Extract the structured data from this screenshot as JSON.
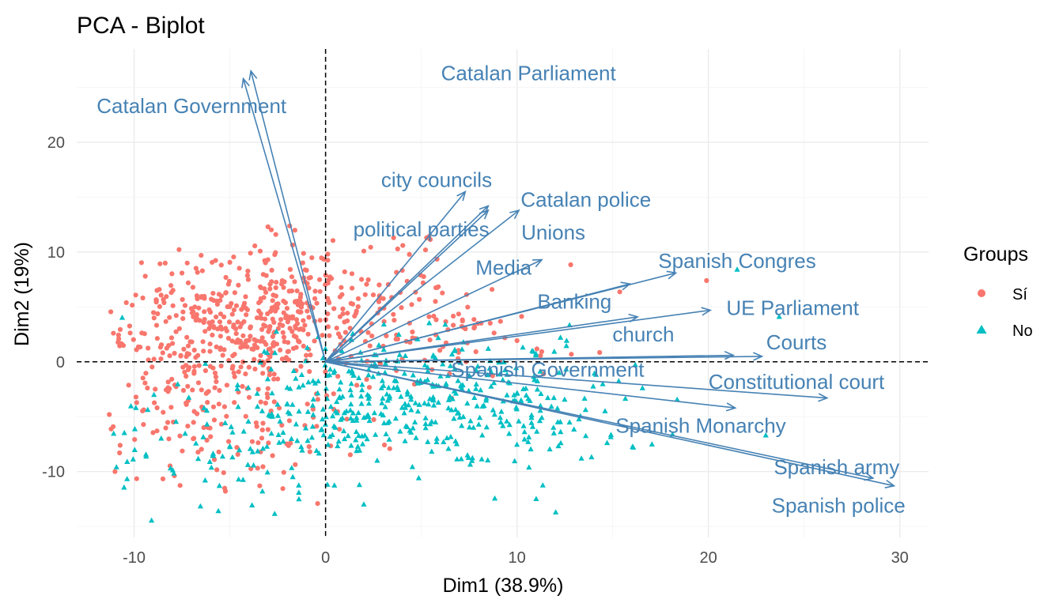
{
  "chart_data": {
    "type": "scatter",
    "title": "PCA - Biplot",
    "xlabel": "Dim1 (38.9%)",
    "ylabel": "Dim2 (19%)",
    "xlim": [
      -13,
      31.5
    ],
    "ylim": [
      -16,
      28.5
    ],
    "x_ticks": [
      -10,
      0,
      10,
      20,
      30
    ],
    "y_ticks": [
      -10,
      0,
      10,
      20
    ],
    "x_tick_labels": [
      "-10",
      "0",
      "10",
      "20",
      "30"
    ],
    "y_tick_labels": [
      "-10",
      "0",
      "10",
      "20"
    ],
    "grid": true,
    "reference_lines": {
      "x": 0,
      "y": 0,
      "style": "dashed"
    },
    "colors": {
      "Sí": "#F8766D",
      "No": "#00BFC4",
      "arrows": "#4682B4"
    },
    "legend": {
      "title": "Groups",
      "placement": "right",
      "entries": [
        {
          "label": "Sí",
          "color": "#F8766D",
          "shape": "circle"
        },
        {
          "label": "No",
          "color": "#00BFC4",
          "shape": "triangle"
        }
      ]
    },
    "variables": [
      {
        "name": "Catalan Parliament",
        "x": -3.9,
        "y": 26.5,
        "lx": 10.6,
        "ly": 26.3
      },
      {
        "name": "Catalan Government",
        "x": -4.3,
        "y": 25.8,
        "lx": -7.0,
        "ly": 23.3
      },
      {
        "name": "city councils",
        "x": 7.3,
        "y": 15.5,
        "lx": 5.8,
        "ly": 16.6
      },
      {
        "name": "Catalan police",
        "x": 8.5,
        "y": 14.2,
        "lx": 13.6,
        "ly": 14.8
      },
      {
        "name": "Unions",
        "x": 10.1,
        "y": 13.8,
        "lx": 11.9,
        "ly": 11.8
      },
      {
        "name": "political parties",
        "x": 8.5,
        "y": 13.8,
        "lx": 5.0,
        "ly": 12.1
      },
      {
        "name": "Media",
        "x": 11.3,
        "y": 9.3,
        "lx": 9.3,
        "ly": 8.6
      },
      {
        "name": "Spanish Congres",
        "x": 18.3,
        "y": 8.1,
        "lx": 21.5,
        "ly": 9.2
      },
      {
        "name": "Banking",
        "x": 15.9,
        "y": 7.1,
        "lx": 13.0,
        "ly": 5.5
      },
      {
        "name": "UE Parliament",
        "x": 20.1,
        "y": 4.7,
        "lx": 24.4,
        "ly": 4.9
      },
      {
        "name": "church",
        "x": 16.3,
        "y": 4.1,
        "lx": 16.6,
        "ly": 2.5
      },
      {
        "name": "Courts",
        "x": 21.3,
        "y": 0.6,
        "lx": 24.6,
        "ly": 1.8
      },
      {
        "name": "Spanish Government",
        "x": 22.8,
        "y": 0.5,
        "lx": 11.6,
        "ly": -0.7
      },
      {
        "name": "Constitutional court",
        "x": 26.2,
        "y": -3.3,
        "lx": 24.6,
        "ly": -1.8
      },
      {
        "name": "Spanish Monarchy",
        "x": 21.4,
        "y": -4.2,
        "lx": 19.6,
        "ly": -5.8
      },
      {
        "name": "Spanish army",
        "x": 28.6,
        "y": -10.6,
        "lx": 26.7,
        "ly": -9.6
      },
      {
        "name": "Spanish police",
        "x": 29.7,
        "y": -11.3,
        "lx": 26.8,
        "ly": -13.1
      }
    ],
    "sample_points": [
      {
        "group": "Sí",
        "x": -11.0,
        "y": -10.0
      },
      {
        "group": "Sí",
        "x": -2.6,
        "y": 11.6
      },
      {
        "group": "Sí",
        "x": -6.5,
        "y": 9.7
      },
      {
        "group": "Sí",
        "x": 19.9,
        "y": 7.4
      },
      {
        "group": "No",
        "x": 21.5,
        "y": 8.4
      },
      {
        "group": "No",
        "x": 23.7,
        "y": 4.1
      },
      {
        "group": "No",
        "x": 11.0,
        "y": -12.5
      },
      {
        "group": "No",
        "x": 2.0,
        "y": -13.0
      },
      {
        "group": "No",
        "x": -5.6,
        "y": -13.6
      },
      {
        "group": "Sí",
        "x": 0.5,
        "y": 1.0
      }
    ]
  }
}
